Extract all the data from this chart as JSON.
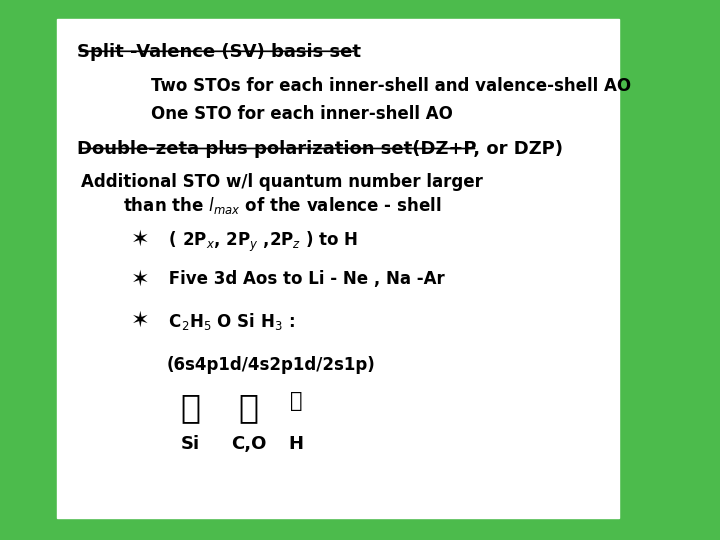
{
  "bg_outer": "#4CBB4C",
  "bg_inner": "#FFFFFF",
  "title1": "Split -Valence (SV) basis set",
  "line1": "Two STOs for each inner-shell and valence-shell AO",
  "line2": "One STO for each inner-shell AO",
  "title2": "Double-zeta plus polarization set(DZ+P, or DZP)",
  "line3a": "Additional STO w/l quantum number larger",
  "line3b_math": "than the $l_{max}$ of the valence - shell",
  "bullet": "✶",
  "bullet_line1": " ( 2P$_x$, 2P$_y$ ,2P$_z$ ) to H",
  "bullet_line2": " Five 3d Aos to Li - Ne , Na -Ar",
  "bullet_line3": " C$_2$H$_5$ O Si H$_3$ :",
  "formula": "(6s4p1d/4s2p1d/2s1p)",
  "Si_label": "Si",
  "CO_label": "C,O",
  "H_label": "H",
  "font_color": "#000000",
  "font_family": "DejaVu Sans",
  "title_fontsize": 13,
  "body_fontsize": 12,
  "bullet_fontsize": 16
}
